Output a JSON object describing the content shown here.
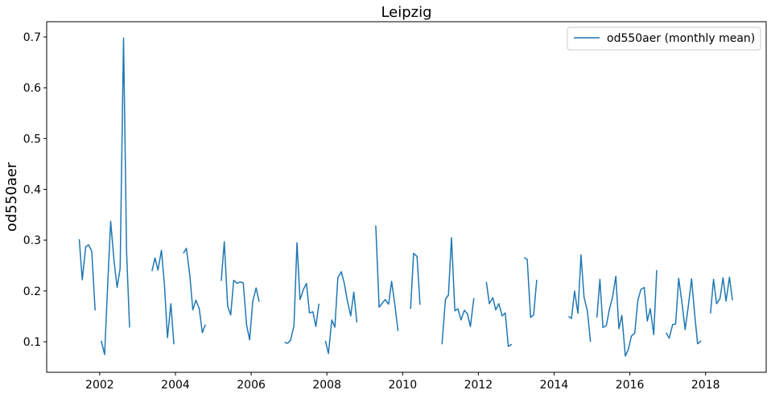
{
  "chart_data": {
    "type": "line",
    "title": "Leipzig",
    "xlabel": "",
    "ylabel": "od550aer",
    "xlim": [
      2000.6,
      2019.6
    ],
    "ylim": [
      0.04,
      0.73
    ],
    "x_ticks": [
      2002,
      2004,
      2006,
      2008,
      2010,
      2012,
      2014,
      2016,
      2018
    ],
    "x_tick_labels": [
      "2002",
      "2004",
      "2006",
      "2008",
      "2010",
      "2012",
      "2014",
      "2016",
      "2018"
    ],
    "y_ticks": [
      0.1,
      0.2,
      0.3,
      0.4,
      0.5,
      0.6,
      0.7
    ],
    "y_tick_labels": [
      "0.1",
      "0.2",
      "0.3",
      "0.4",
      "0.5",
      "0.6",
      "0.7"
    ],
    "grid": false,
    "legend_position": "top-right",
    "colors": {
      "series": "#1f77b4"
    },
    "series": [
      {
        "name": "od550aer (monthly mean)",
        "segments": [
          [
            [
              2001.46,
              0.302
            ],
            [
              2001.54,
              0.222
            ],
            [
              2001.63,
              0.287
            ],
            [
              2001.71,
              0.291
            ],
            [
              2001.79,
              0.278
            ],
            [
              2001.88,
              0.162
            ]
          ],
          [
            [
              2002.04,
              0.102
            ],
            [
              2002.13,
              0.075
            ],
            [
              2002.21,
              0.212
            ],
            [
              2002.29,
              0.337
            ],
            [
              2002.38,
              0.258
            ],
            [
              2002.46,
              0.207
            ],
            [
              2002.54,
              0.245
            ],
            [
              2002.63,
              0.698
            ],
            [
              2002.71,
              0.276
            ],
            [
              2002.79,
              0.128
            ]
          ],
          [
            [
              2003.38,
              0.239
            ],
            [
              2003.46,
              0.265
            ],
            [
              2003.54,
              0.241
            ],
            [
              2003.63,
              0.28
            ],
            [
              2003.71,
              0.213
            ],
            [
              2003.79,
              0.108
            ],
            [
              2003.88,
              0.175
            ],
            [
              2003.96,
              0.095
            ]
          ],
          [
            [
              2004.21,
              0.274
            ],
            [
              2004.29,
              0.284
            ],
            [
              2004.38,
              0.23
            ],
            [
              2004.46,
              0.163
            ],
            [
              2004.54,
              0.182
            ],
            [
              2004.63,
              0.165
            ],
            [
              2004.71,
              0.118
            ],
            [
              2004.79,
              0.134
            ]
          ],
          [
            [
              2005.21,
              0.22
            ],
            [
              2005.29,
              0.297
            ],
            [
              2005.38,
              0.17
            ],
            [
              2005.46,
              0.153
            ],
            [
              2005.54,
              0.221
            ],
            [
              2005.63,
              0.215
            ],
            [
              2005.71,
              0.218
            ],
            [
              2005.79,
              0.216
            ],
            [
              2005.88,
              0.133
            ],
            [
              2005.96,
              0.104
            ],
            [
              2006.04,
              0.179
            ],
            [
              2006.13,
              0.206
            ],
            [
              2006.21,
              0.179
            ]
          ],
          [
            [
              2006.88,
              0.099
            ],
            [
              2006.96,
              0.097
            ],
            [
              2007.04,
              0.103
            ],
            [
              2007.13,
              0.132
            ],
            [
              2007.21,
              0.295
            ],
            [
              2007.29,
              0.183
            ],
            [
              2007.38,
              0.203
            ],
            [
              2007.46,
              0.215
            ],
            [
              2007.54,
              0.157
            ],
            [
              2007.63,
              0.159
            ],
            [
              2007.71,
              0.13
            ],
            [
              2007.79,
              0.175
            ]
          ],
          [
            [
              2007.96,
              0.102
            ],
            [
              2008.04,
              0.077
            ],
            [
              2008.13,
              0.143
            ],
            [
              2008.21,
              0.129
            ],
            [
              2008.29,
              0.226
            ],
            [
              2008.38,
              0.238
            ],
            [
              2008.46,
              0.215
            ],
            [
              2008.54,
              0.181
            ],
            [
              2008.63,
              0.151
            ],
            [
              2008.71,
              0.198
            ],
            [
              2008.79,
              0.138
            ]
          ],
          [
            [
              2009.29,
              0.329
            ],
            [
              2009.38,
              0.168
            ],
            [
              2009.46,
              0.176
            ],
            [
              2009.54,
              0.183
            ],
            [
              2009.63,
              0.174
            ],
            [
              2009.71,
              0.219
            ],
            [
              2009.79,
              0.176
            ],
            [
              2009.88,
              0.121
            ]
          ],
          [
            [
              2010.21,
              0.165
            ],
            [
              2010.29,
              0.274
            ],
            [
              2010.38,
              0.268
            ],
            [
              2010.46,
              0.173
            ]
          ],
          [
            [
              2011.04,
              0.095
            ],
            [
              2011.13,
              0.184
            ],
            [
              2011.21,
              0.192
            ],
            [
              2011.29,
              0.305
            ],
            [
              2011.38,
              0.161
            ],
            [
              2011.46,
              0.165
            ],
            [
              2011.54,
              0.143
            ],
            [
              2011.63,
              0.162
            ],
            [
              2011.71,
              0.155
            ],
            [
              2011.79,
              0.13
            ],
            [
              2011.88,
              0.186
            ]
          ],
          [
            [
              2012.21,
              0.218
            ],
            [
              2012.29,
              0.175
            ],
            [
              2012.38,
              0.187
            ],
            [
              2012.46,
              0.163
            ],
            [
              2012.54,
              0.175
            ],
            [
              2012.63,
              0.151
            ],
            [
              2012.71,
              0.157
            ],
            [
              2012.79,
              0.091
            ],
            [
              2012.88,
              0.095
            ]
          ],
          [
            [
              2013.21,
              0.266
            ],
            [
              2013.29,
              0.262
            ],
            [
              2013.38,
              0.148
            ],
            [
              2013.46,
              0.153
            ],
            [
              2013.54,
              0.222
            ]
          ],
          [
            [
              2014.38,
              0.15
            ],
            [
              2014.46,
              0.146
            ],
            [
              2014.54,
              0.2
            ],
            [
              2014.63,
              0.156
            ],
            [
              2014.71,
              0.271
            ],
            [
              2014.79,
              0.188
            ],
            [
              2014.88,
              0.16
            ],
            [
              2014.96,
              0.1
            ]
          ],
          [
            [
              2015.13,
              0.148
            ],
            [
              2015.21,
              0.223
            ],
            [
              2015.29,
              0.128
            ],
            [
              2015.38,
              0.132
            ],
            [
              2015.46,
              0.164
            ],
            [
              2015.54,
              0.187
            ],
            [
              2015.63,
              0.229
            ],
            [
              2015.71,
              0.126
            ],
            [
              2015.79,
              0.152
            ],
            [
              2015.88,
              0.072
            ],
            [
              2015.96,
              0.085
            ],
            [
              2016.04,
              0.111
            ],
            [
              2016.13,
              0.117
            ],
            [
              2016.21,
              0.181
            ],
            [
              2016.29,
              0.203
            ],
            [
              2016.38,
              0.207
            ],
            [
              2016.46,
              0.141
            ],
            [
              2016.54,
              0.165
            ],
            [
              2016.63,
              0.114
            ],
            [
              2016.71,
              0.241
            ]
          ],
          [
            [
              2016.96,
              0.118
            ],
            [
              2017.04,
              0.107
            ],
            [
              2017.13,
              0.134
            ],
            [
              2017.21,
              0.135
            ],
            [
              2017.29,
              0.225
            ],
            [
              2017.38,
              0.175
            ],
            [
              2017.46,
              0.124
            ],
            [
              2017.54,
              0.168
            ],
            [
              2017.63,
              0.224
            ],
            [
              2017.71,
              0.155
            ],
            [
              2017.79,
              0.096
            ],
            [
              2017.88,
              0.102
            ]
          ],
          [
            [
              2018.13,
              0.156
            ],
            [
              2018.21,
              0.223
            ],
            [
              2018.29,
              0.175
            ],
            [
              2018.38,
              0.185
            ],
            [
              2018.46,
              0.226
            ],
            [
              2018.54,
              0.18
            ],
            [
              2018.63,
              0.227
            ],
            [
              2018.71,
              0.182
            ]
          ]
        ]
      }
    ]
  }
}
